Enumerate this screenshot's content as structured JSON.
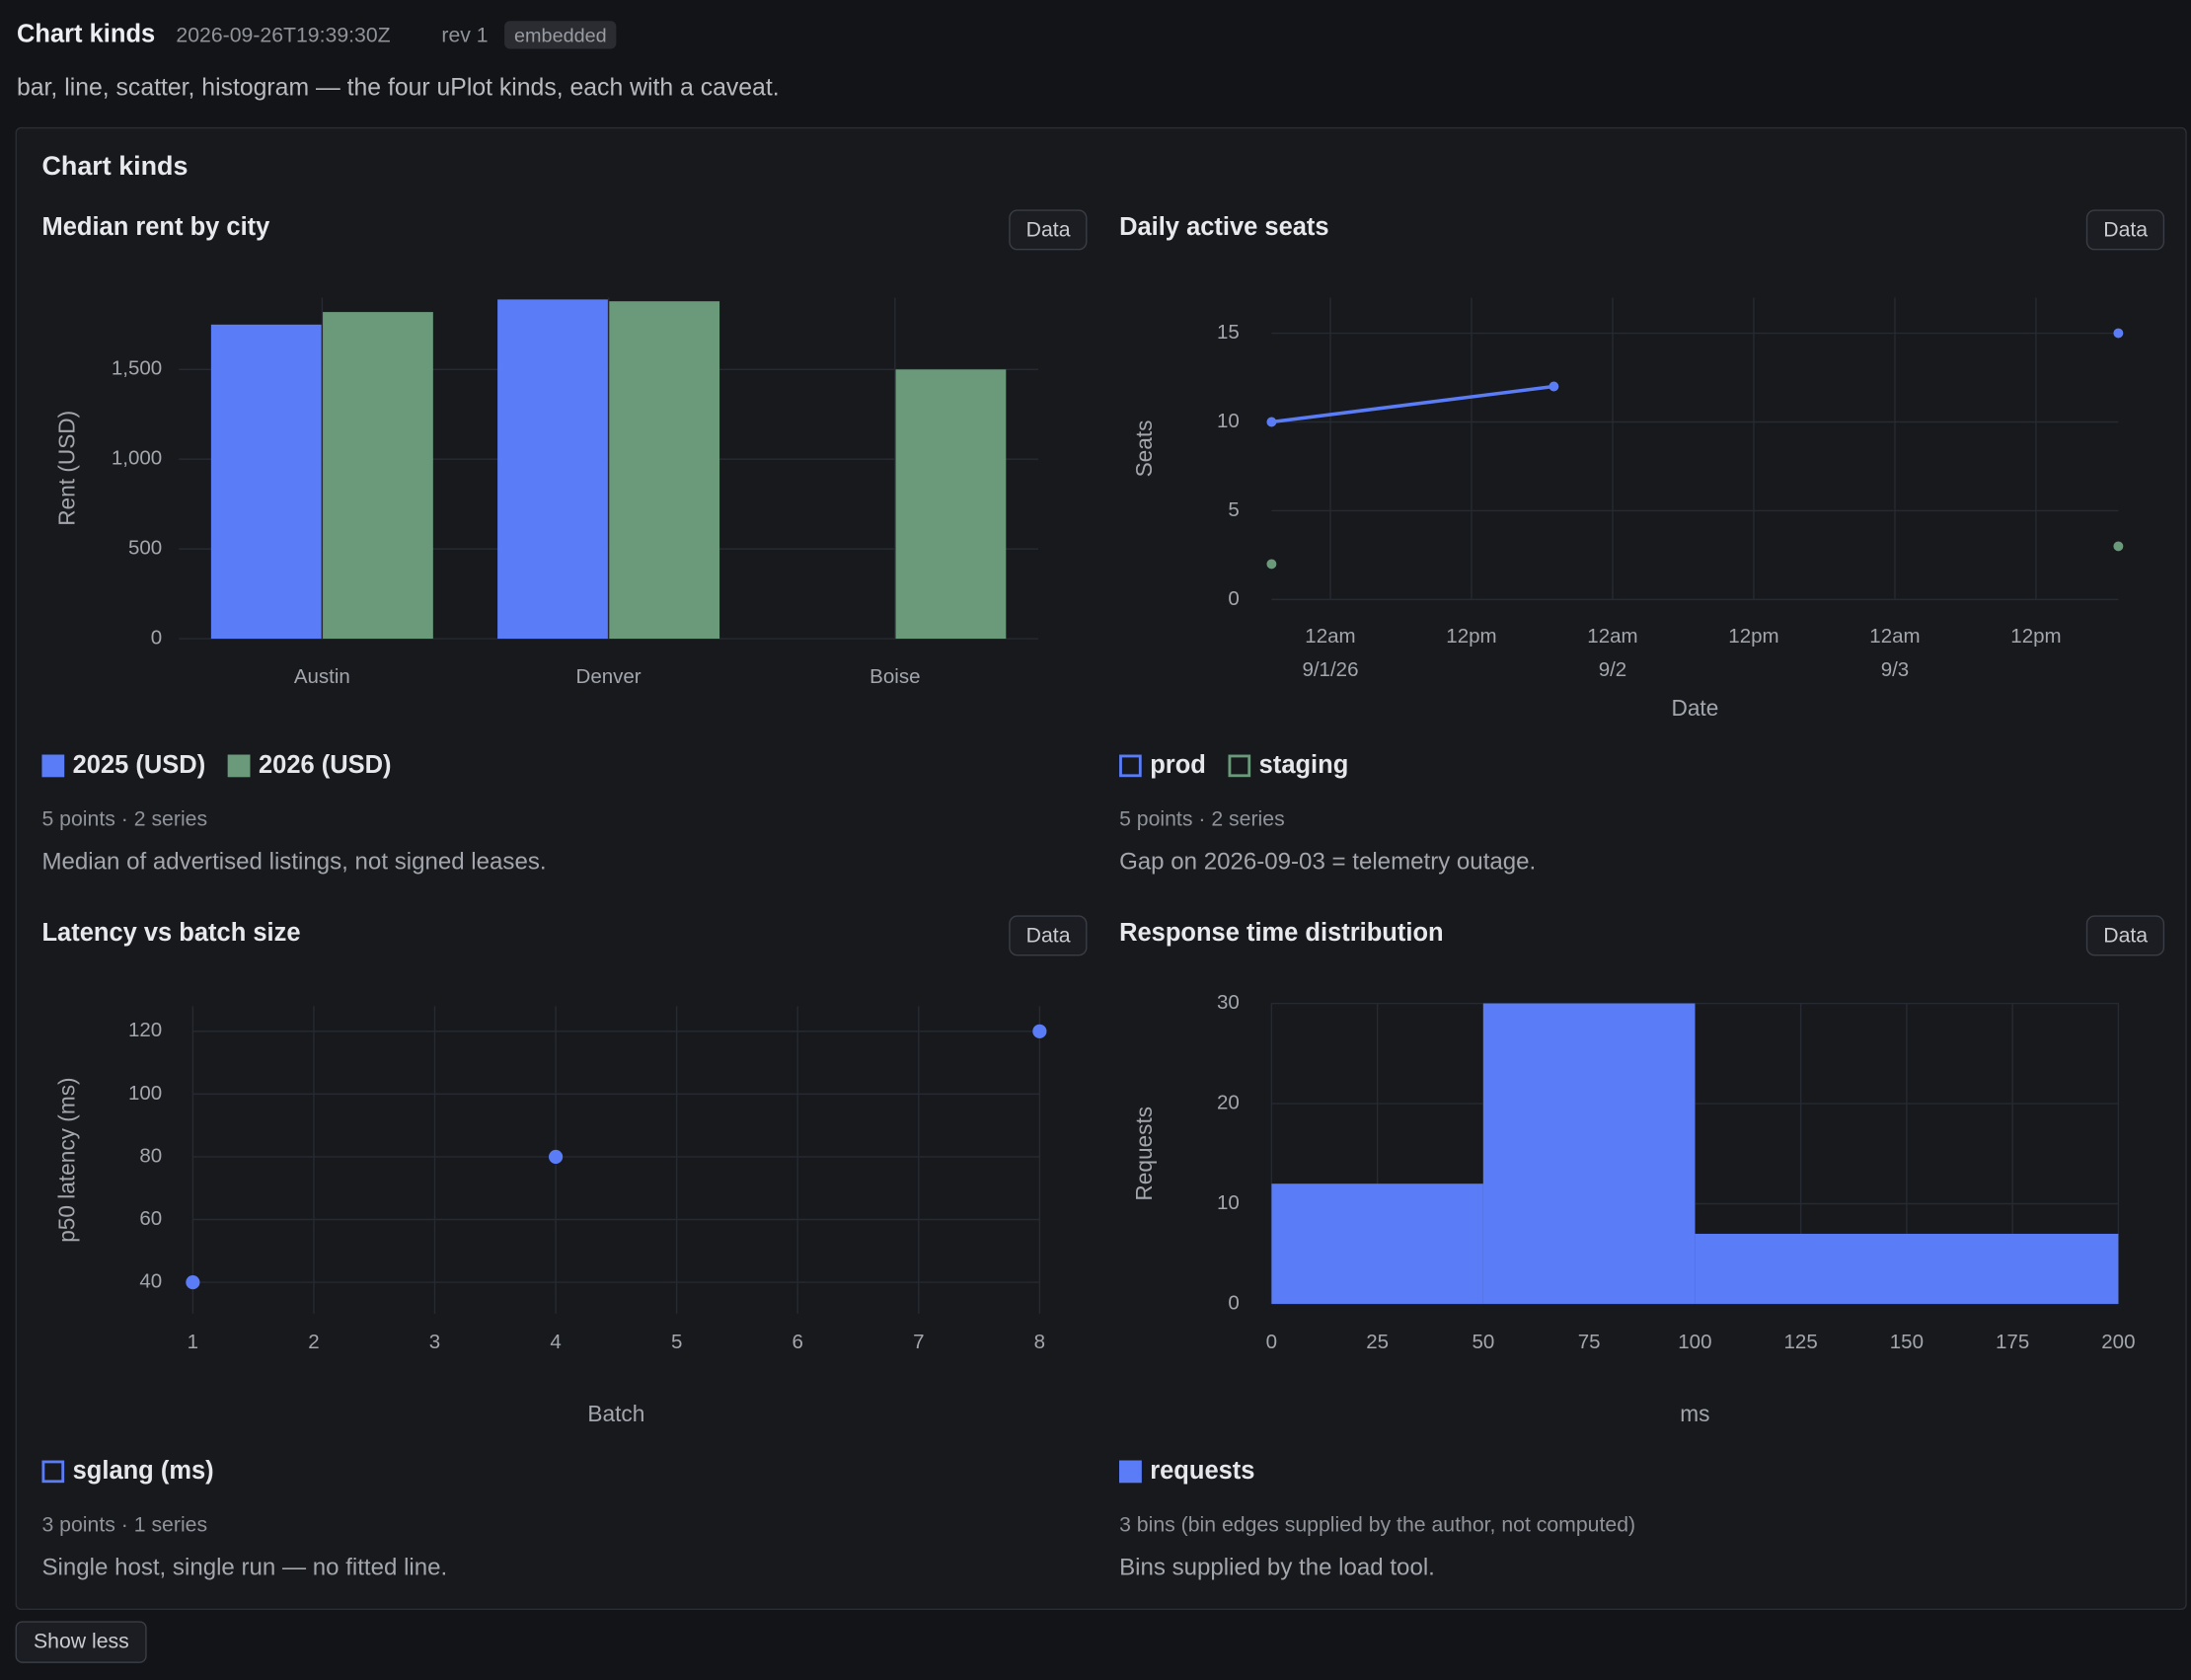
{
  "header": {
    "title": "Chart kinds",
    "timestamp": "2026-09-26T19:39:30Z",
    "revision": "rev 1",
    "badge": "embedded",
    "description": "bar, line, scatter, histogram — the four uPlot kinds, each with a caveat."
  },
  "panel_title": "Chart kinds",
  "chart_data": [
    {
      "type": "bar",
      "title": "Median rent by city",
      "data_button": "Data",
      "categories": [
        "Austin",
        "Denver",
        "Boise"
      ],
      "series": [
        {
          "name": "2025 (USD)",
          "color": "#5a7cf7",
          "values": [
            1750,
            1890,
            null
          ]
        },
        {
          "name": "2026 (USD)",
          "color": "#6a9a7a",
          "values": [
            1820,
            1880,
            1500
          ]
        }
      ],
      "ylabel": "Rent (USD)",
      "ylim": [
        0,
        1900
      ],
      "yticks": [
        0,
        500,
        {
          "value": 1000,
          "label": "1,000"
        },
        {
          "value": 1500,
          "label": "1,500"
        }
      ],
      "grid": true,
      "summary": "5 points · 2 series",
      "caption": "Median of advertised listings, not signed leases."
    },
    {
      "type": "line",
      "title": "Daily active seats",
      "data_button": "Data",
      "x": [
        "2026-09-01T00:00:00Z",
        "2026-09-02T00:00:00Z",
        "2026-09-03T00:00:00Z",
        "2026-09-04T00:00:00Z"
      ],
      "series": [
        {
          "name": "prod",
          "color": "#5a7cf7",
          "values": [
            10,
            12,
            null,
            15
          ]
        },
        {
          "name": "staging",
          "color": "#6a9a7a",
          "values": [
            2,
            null,
            null,
            3
          ]
        }
      ],
      "xlabel": "Date",
      "ylabel": "Seats",
      "xlim": [
        "2026-09-01T00:00:00Z",
        "2026-09-04T00:00:00Z"
      ],
      "xticks": [
        {
          "value": "2026-09-01T05:00:00Z",
          "label": "12am"
        },
        {
          "value": "2026-09-01T17:00:00Z",
          "label": "12pm"
        },
        {
          "value": "2026-09-02T05:00:00Z",
          "label": "12am"
        },
        {
          "value": "2026-09-02T17:00:00Z",
          "label": "12pm"
        },
        {
          "value": "2026-09-03T05:00:00Z",
          "label": "12am"
        },
        {
          "value": "2026-09-03T17:00:00Z",
          "label": "12pm"
        }
      ],
      "xtick_dates": [
        {
          "value": "2026-09-01T05:00:00Z",
          "label": "9/1/26"
        },
        {
          "value": "2026-09-02T05:00:00Z",
          "label": "9/2"
        },
        {
          "value": "2026-09-03T05:00:00Z",
          "label": "9/3"
        }
      ],
      "ylim": [
        0,
        17
      ],
      "yticks": [
        0,
        5,
        10,
        15
      ],
      "grid": true,
      "summary": "5 points · 2 series",
      "caption": "Gap on 2026-09-03 = telemetry outage."
    },
    {
      "type": "scatter",
      "title": "Latency vs batch size",
      "data_button": "Data",
      "x": [
        1,
        4,
        8
      ],
      "series": [
        {
          "name": "sglang (ms)",
          "color": "#5a7cf7",
          "values": [
            40,
            80,
            120
          ]
        }
      ],
      "xlabel": "Batch",
      "ylabel": "p50 latency (ms)",
      "xlim": [
        1,
        8
      ],
      "xticks": [
        1,
        2,
        3,
        4,
        5,
        6,
        7,
        8
      ],
      "ylim": [
        30,
        128
      ],
      "yticks": [
        40,
        60,
        80,
        100,
        120
      ],
      "grid": true,
      "summary": "3 points · 1 series",
      "caption": "Single host, single run — no fitted line."
    },
    {
      "type": "histogram",
      "title": "Response time distribution",
      "data_button": "Data",
      "bins": [
        0,
        50,
        100,
        200
      ],
      "series": [
        {
          "name": "requests",
          "color": "#5a7cf7",
          "values": [
            12,
            30,
            7
          ]
        }
      ],
      "xlabel": "ms",
      "ylabel": "Requests",
      "xlim": [
        0,
        200
      ],
      "xticks": [
        0,
        25,
        50,
        75,
        100,
        125,
        150,
        175,
        200
      ],
      "ylim": [
        0,
        30
      ],
      "yticks": [
        0,
        10,
        20,
        30
      ],
      "grid": true,
      "summary": "3 bins (bin edges supplied by the author, not computed)",
      "caption": "Bins supplied by the load tool."
    }
  ],
  "show_less": "Show less"
}
